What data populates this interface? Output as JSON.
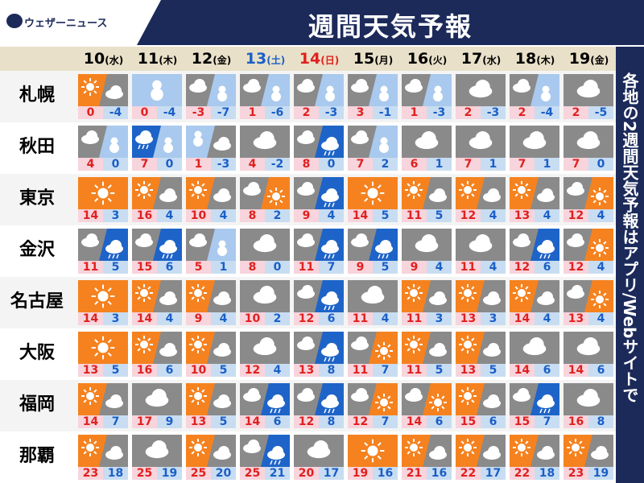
{
  "header": {
    "logo": "ウェザーニュース",
    "title": "週間天気予報"
  },
  "side_text": "各地の2週間天気予報はアプリ/Webサイトで",
  "dates": [
    {
      "day": "10",
      "weekday": "(水)",
      "color": "#000000"
    },
    {
      "day": "11",
      "weekday": "(木)",
      "color": "#000000"
    },
    {
      "day": "12",
      "weekday": "(金)",
      "color": "#000000"
    },
    {
      "day": "13",
      "weekday": "(土)",
      "color": "#1a5fc8"
    },
    {
      "day": "14",
      "weekday": "(日)",
      "color": "#e0201e"
    },
    {
      "day": "15",
      "weekday": "(月)",
      "color": "#000000"
    },
    {
      "day": "16",
      "weekday": "(火)",
      "color": "#000000"
    },
    {
      "day": "17",
      "weekday": "(水)",
      "color": "#000000"
    },
    {
      "day": "18",
      "weekday": "(木)",
      "color": "#000000"
    },
    {
      "day": "19",
      "weekday": "(金)",
      "color": "#000000"
    }
  ],
  "rows": [
    {
      "city": "札幌",
      "high": [
        0,
        0,
        -3,
        1,
        2,
        3,
        1,
        2,
        2,
        2
      ],
      "low": [
        -4,
        -4,
        -7,
        -6,
        -3,
        -1,
        -3,
        -3,
        -4,
        -5
      ]
    },
    {
      "city": "秋田",
      "high": [
        4,
        7,
        1,
        4,
        8,
        7,
        6,
        7,
        7,
        7
      ],
      "low": [
        0,
        0,
        -3,
        -2,
        0,
        2,
        1,
        1,
        1,
        0
      ]
    },
    {
      "city": "東京",
      "high": [
        14,
        16,
        10,
        8,
        9,
        14,
        11,
        12,
        13,
        12
      ],
      "low": [
        3,
        4,
        4,
        2,
        4,
        5,
        5,
        4,
        4,
        4
      ]
    },
    {
      "city": "金沢",
      "high": [
        11,
        15,
        5,
        8,
        11,
        9,
        9,
        11,
        12,
        12
      ],
      "low": [
        5,
        6,
        1,
        0,
        7,
        5,
        4,
        4,
        6,
        4
      ]
    },
    {
      "city": "名古屋",
      "high": [
        14,
        14,
        9,
        10,
        12,
        11,
        11,
        13,
        14,
        13
      ],
      "low": [
        3,
        4,
        4,
        2,
        6,
        4,
        3,
        3,
        4,
        4
      ]
    },
    {
      "city": "大阪",
      "high": [
        13,
        16,
        10,
        12,
        13,
        11,
        11,
        13,
        14,
        14
      ],
      "low": [
        5,
        6,
        5,
        4,
        8,
        7,
        5,
        5,
        6,
        6
      ]
    },
    {
      "city": "福岡",
      "high": [
        14,
        17,
        13,
        14,
        12,
        12,
        14,
        15,
        15,
        16
      ],
      "low": [
        7,
        9,
        5,
        6,
        8,
        7,
        6,
        6,
        7,
        8
      ]
    },
    {
      "city": "那覇",
      "high": [
        23,
        25,
        25,
        25,
        20,
        19,
        21,
        22,
        22,
        23
      ],
      "low": [
        18,
        19,
        20,
        21,
        17,
        16,
        16,
        17,
        18,
        19
      ]
    }
  ]
}
